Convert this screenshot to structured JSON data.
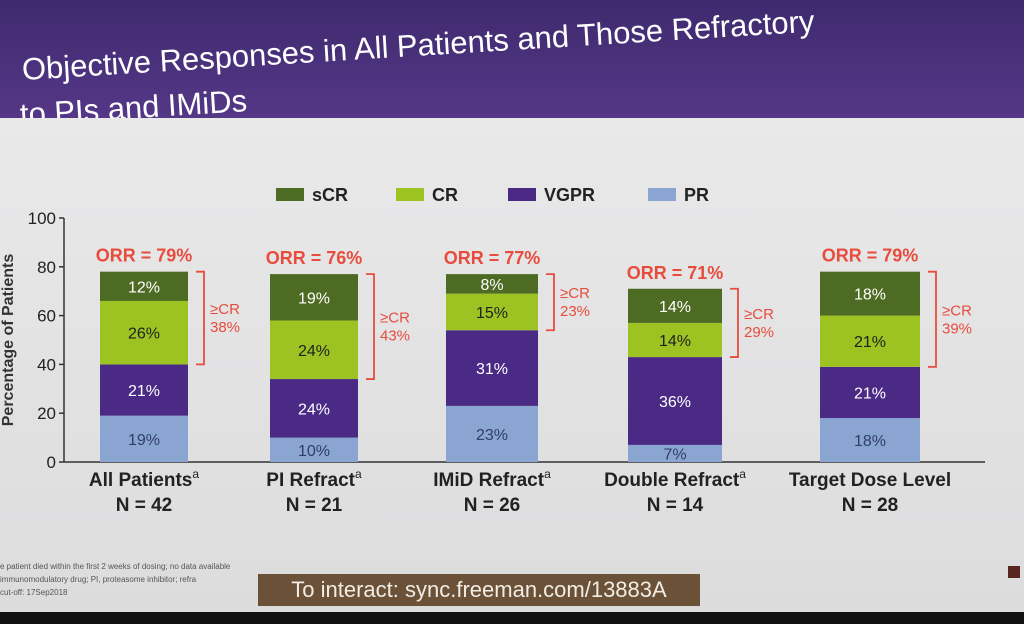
{
  "slide": {
    "title_line1": "Objective Responses in All Patients and Those Refractory",
    "title_line2": "to PIs and IMiDs"
  },
  "footnotes": [
    "e patient died within the first 2 weeks of dosing; no data available",
    "immunomodulatory drug; PI, proteasome inhibitor; refra",
    "cut-off: 17Sep2018"
  ],
  "interact_banner": "To interact: sync.freeman.com/13883A",
  "colors": {
    "sCR": "#4e6b24",
    "CR": "#9dc322",
    "VGPR": "#4b2a86",
    "PR": "#8ba5d2",
    "orr_red": "#e84c3d"
  },
  "chart_data": {
    "type": "bar",
    "stacked": true,
    "ylabel": "Percentage of Patients",
    "ylim": [
      0,
      100
    ],
    "yticks": [
      0,
      20,
      40,
      60,
      80,
      100
    ],
    "legend": [
      "sCR",
      "CR",
      "VGPR",
      "PR"
    ],
    "legend_position": "top",
    "categories": [
      {
        "name": "All Patients",
        "sup": "a",
        "n": "N = 42"
      },
      {
        "name": "PI Refract",
        "sup": "a",
        "n": "N = 21"
      },
      {
        "name": "IMiD Refract",
        "sup": "a",
        "n": "N = 26"
      },
      {
        "name": "Double Refract",
        "sup": "a",
        "n": "N = 14"
      },
      {
        "name": "Target Dose Level",
        "sup": "",
        "n": "N = 28"
      }
    ],
    "series": [
      {
        "name": "PR",
        "values": [
          19,
          10,
          23,
          7,
          18
        ],
        "labels": [
          "19%",
          "10%",
          "23%",
          "7%",
          "18%"
        ]
      },
      {
        "name": "VGPR",
        "values": [
          21,
          24,
          31,
          36,
          21
        ],
        "labels": [
          "21%",
          "24%",
          "31%",
          "36%",
          "21%"
        ]
      },
      {
        "name": "CR",
        "values": [
          26,
          24,
          15,
          14,
          21
        ],
        "labels": [
          "26%",
          "24%",
          "15%",
          "14%",
          "21%"
        ]
      },
      {
        "name": "sCR",
        "values": [
          12,
          19,
          8,
          14,
          18
        ],
        "labels": [
          "12%",
          "19%",
          "8%",
          "14%",
          "18%"
        ]
      }
    ],
    "orr_labels": [
      "ORR = 79%",
      "ORR = 76%",
      "ORR = 77%",
      "ORR = 71%",
      "ORR = 79%"
    ],
    "ge_cr_labels": [
      [
        "≥CR",
        "38%"
      ],
      [
        "≥CR",
        "43%"
      ],
      [
        "≥CR",
        "23%"
      ],
      [
        "≥CR",
        "29%"
      ],
      [
        "≥CR",
        "39%"
      ]
    ]
  }
}
